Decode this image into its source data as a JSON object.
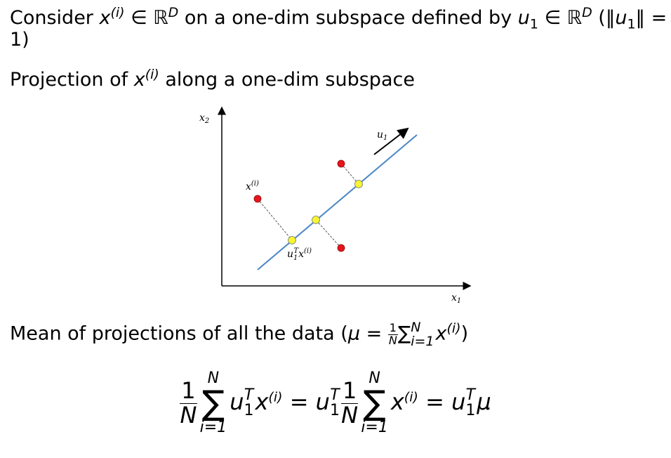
{
  "intro": [
    "Consider ",
    "x",
    "(i)",
    " ∈ ℝ",
    "D",
    " on a one-dim subspace defined by ",
    "u",
    "1",
    " ∈ ℝ",
    "D",
    " (‖",
    "u",
    "1",
    "‖ =",
    "1)"
  ],
  "projection_line": [
    "Projection of ",
    "x",
    "(i)",
    " along a one-dim subspace"
  ],
  "figure": {
    "y_axis": [
      "x",
      "2"
    ],
    "x_axis": [
      "x",
      "1"
    ],
    "direction": [
      "u",
      "1"
    ],
    "point": [
      "x",
      "(i)"
    ],
    "projection": [
      "u",
      "1",
      "T",
      "x",
      "(i)"
    ]
  },
  "mean_line": [
    "Mean of projections of all the data (",
    "μ",
    " = ",
    "1",
    "N",
    "∑",
    "N",
    "i=1",
    "x",
    "(i)",
    ")"
  ],
  "formula": [
    "1",
    "N",
    "N",
    "∑",
    "i=1",
    "u",
    "1",
    "T",
    "x",
    "(i)",
    " = ",
    "u",
    "1",
    "T",
    "1",
    "N",
    "N",
    "∑",
    "i=1",
    "x",
    "(i)",
    " = ",
    "u",
    "1",
    "T",
    "μ"
  ]
}
